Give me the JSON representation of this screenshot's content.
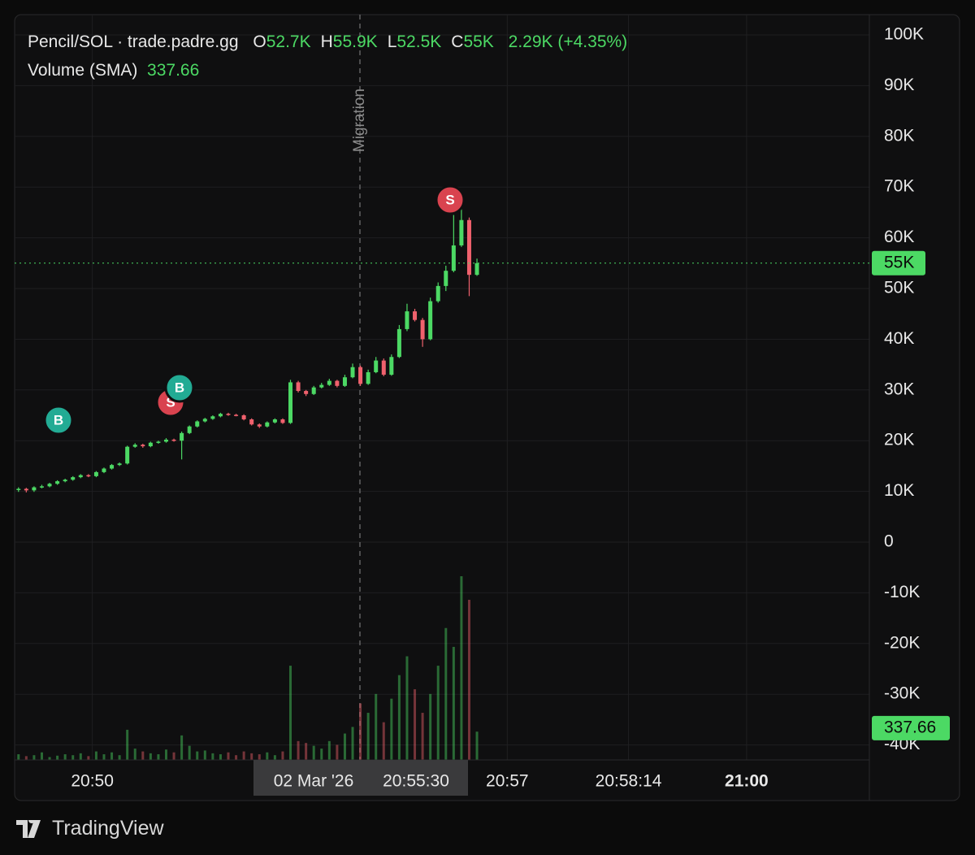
{
  "chart_data": {
    "type": "candlestick",
    "legend": {
      "symbol": "Pencil/SOL · trade.padre.gg",
      "items": [
        {
          "key": "O",
          "text": "52.7K"
        },
        {
          "key": "H",
          "text": "55.9K"
        },
        {
          "key": "L",
          "text": "52.5K"
        },
        {
          "key": "C",
          "text": "55K"
        }
      ],
      "change": "2.29K (+4.35%)",
      "volume_title": "Volume (SMA)"
    },
    "volume_sma": 337.66,
    "last_price": {
      "value": 55000,
      "label": "55K"
    },
    "annotation": "Migration",
    "crosshair": {
      "date": "02 Mar '26",
      "time": "20:55:30"
    },
    "brand": "TradingView",
    "up_color": "#4cd964",
    "down_color": "#f0616d",
    "grid": true,
    "ylim": [
      -42000,
      104000
    ],
    "yticks": [
      {
        "value": 100000,
        "label": "100K"
      },
      {
        "value": 90000,
        "label": "90K"
      },
      {
        "value": 80000,
        "label": "80K"
      },
      {
        "value": 70000,
        "label": "70K"
      },
      {
        "value": 60000,
        "label": "60K"
      },
      {
        "value": 50000,
        "label": "50K"
      },
      {
        "value": 40000,
        "label": "40K"
      },
      {
        "value": 30000,
        "label": "30K"
      },
      {
        "value": 20000,
        "label": "20K"
      },
      {
        "value": 10000,
        "label": "10K"
      },
      0,
      {
        "value": -10000,
        "label": "-10K"
      },
      {
        "value": -20000,
        "label": "-20K"
      },
      {
        "value": -30000,
        "label": "-30K"
      },
      {
        "value": -40000,
        "label": "-40K"
      }
    ],
    "xlim": [
      0,
      110
    ],
    "xticks": [
      {
        "value": 10.0,
        "label": "20:50"
      },
      {
        "value": 63.4,
        "label": "20:57"
      },
      {
        "value": 79.0,
        "label": "20:58:14"
      },
      {
        "value": 94.2,
        "label": "21:00"
      }
    ],
    "bold_xticks": [
      3
    ],
    "markers": [
      {
        "label": "B",
        "color": "#22ab94"
      },
      {
        "label": "S",
        "color": "#d9434f"
      },
      {
        "label": "B",
        "color": "#22ab94"
      },
      {
        "label": "S",
        "color": "#d9434f"
      }
    ],
    "open": [
      10300,
      10500,
      10200,
      10800,
      11000,
      11500,
      12000,
      12300,
      12800,
      13200,
      13000,
      13800,
      14500,
      15200,
      15500,
      18800,
      19200,
      18900,
      19600,
      19800,
      20200,
      20000,
      21500,
      22800,
      23800,
      24300,
      24800,
      25300,
      25100,
      25000,
      24200,
      23200,
      22800,
      23600,
      24200,
      23500,
      31500,
      29800,
      29200,
      30500,
      31000,
      31800,
      30800,
      32500,
      34500,
      31200,
      33500,
      35800,
      33000,
      36500,
      42000,
      45500,
      43800,
      40000,
      47500,
      50500,
      53500,
      58500,
      63500,
      52700
    ],
    "high": [
      10800,
      10700,
      11000,
      11300,
      11700,
      12200,
      12500,
      13000,
      13400,
      13400,
      14000,
      14700,
      15400,
      15700,
      19000,
      19500,
      19400,
      19800,
      20000,
      20500,
      20400,
      21800,
      23000,
      24000,
      24500,
      25000,
      25500,
      25500,
      25300,
      25200,
      24400,
      23400,
      23800,
      24400,
      24400,
      32000,
      31800,
      30000,
      30800,
      31400,
      32200,
      32000,
      33000,
      35200,
      34800,
      34000,
      36500,
      36200,
      37000,
      42800,
      47000,
      46000,
      44200,
      48200,
      51200,
      54500,
      64500,
      67000,
      64000,
      55900
    ],
    "low": [
      9900,
      9800,
      9900,
      10600,
      10800,
      11300,
      11800,
      12100,
      12600,
      12800,
      12800,
      13600,
      14300,
      15000,
      15300,
      18600,
      18600,
      18700,
      19400,
      19600,
      19800,
      16300,
      21300,
      22600,
      23600,
      24100,
      24600,
      24900,
      24800,
      24000,
      23000,
      22500,
      22600,
      23400,
      23300,
      23300,
      29500,
      28800,
      29000,
      30300,
      30800,
      30500,
      30600,
      32300,
      30800,
      31000,
      33300,
      32700,
      32800,
      36300,
      41600,
      43500,
      38500,
      39800,
      47200,
      49500,
      53200,
      58200,
      48500,
      52500
    ],
    "close": [
      10500,
      10200,
      10800,
      11000,
      11500,
      12000,
      12300,
      12800,
      13200,
      13000,
      13800,
      14500,
      15200,
      15500,
      18800,
      19200,
      18900,
      19600,
      19800,
      20200,
      20000,
      21500,
      22800,
      23800,
      24300,
      24800,
      25300,
      25100,
      25000,
      24200,
      23200,
      22800,
      23600,
      24200,
      23500,
      31500,
      29800,
      29200,
      30500,
      31000,
      31800,
      30800,
      32500,
      34500,
      31200,
      33500,
      35800,
      33000,
      36500,
      42000,
      45500,
      43800,
      40000,
      47500,
      50500,
      53500,
      58500,
      63500,
      52700,
      55000
    ],
    "volume": [
      60,
      40,
      50,
      80,
      30,
      45,
      60,
      50,
      70,
      40,
      90,
      60,
      80,
      50,
      320,
      120,
      90,
      70,
      60,
      110,
      80,
      260,
      150,
      90,
      100,
      70,
      60,
      80,
      50,
      90,
      70,
      60,
      80,
      50,
      90,
      1000,
      200,
      180,
      150,
      120,
      200,
      160,
      280,
      350,
      600,
      500,
      700,
      400,
      650,
      900,
      1100,
      750,
      500,
      700,
      1000,
      1400,
      1200,
      1950,
      1700,
      300
    ]
  }
}
